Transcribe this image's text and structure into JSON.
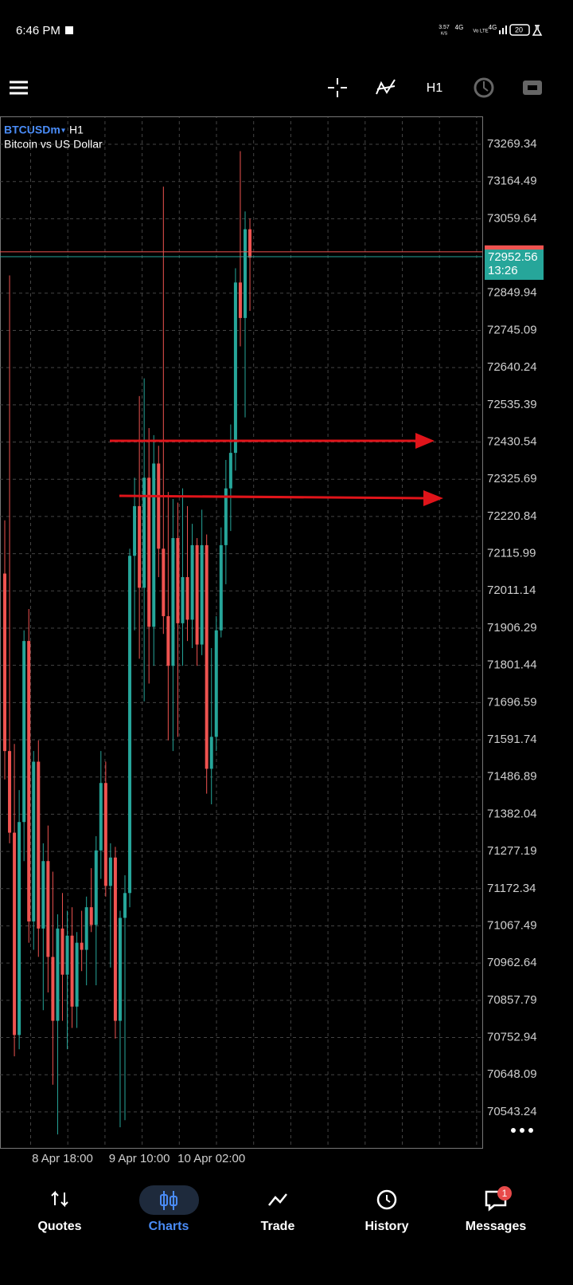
{
  "status_bar": {
    "time": "6:46 PM",
    "speed": "3.57",
    "speed_unit": "K/S",
    "network": "4G",
    "volte": "Vo LTE",
    "network2": "4G",
    "battery": "20"
  },
  "toolbar": {
    "timeframe": "H1"
  },
  "chart_data": {
    "type": "candlestick",
    "symbol": "BTCUSDm",
    "symbol_arrow": "▾",
    "timeframe": "H1",
    "title": "Bitcoin vs US Dollar",
    "categories": [
      null,
      null,
      null,
      null,
      null,
      null,
      null,
      null,
      null,
      null,
      null,
      null,
      "8 Apr 18:00",
      null,
      null,
      null,
      null,
      null,
      null,
      null,
      null,
      null,
      null,
      null,
      null,
      null,
      null,
      null,
      "9 Apr 10:00",
      null,
      null,
      null,
      null,
      null,
      null,
      null,
      null,
      null,
      null,
      null,
      null,
      null,
      null,
      "10 Apr 02:00",
      null,
      null,
      null,
      null,
      null,
      null,
      null,
      null
    ],
    "open": [
      72060,
      71560,
      71330,
      70760,
      71360,
      71870,
      71080,
      71530,
      71060,
      71250,
      70980,
      70800,
      71060,
      70930,
      71040,
      70840,
      71020,
      71000,
      71120,
      71070,
      71280,
      71470,
      71180,
      71260,
      70800,
      71090,
      71160,
      72110,
      72250,
      72020,
      72330,
      71910,
      72370,
      72130,
      71940,
      71800,
      72160,
      71920,
      72050,
      71930,
      72140,
      71860,
      72140,
      71510,
      71600,
      71900,
      72140,
      72300,
      72400,
      72880,
      72780,
      73030
    ],
    "high": [
      72210,
      72900,
      71580,
      71450,
      71900,
      71960,
      71560,
      71590,
      71300,
      71350,
      71220,
      71100,
      71160,
      71110,
      71120,
      71050,
      71110,
      71150,
      71230,
      71320,
      71560,
      71530,
      71300,
      71290,
      71110,
      71210,
      72130,
      72330,
      72560,
      72610,
      72470,
      72450,
      72420,
      73150,
      72290,
      72270,
      72260,
      72300,
      72250,
      72200,
      72160,
      72240,
      72170,
      71850,
      71940,
      72190,
      72380,
      72480,
      72920,
      73250,
      73080,
      73060
    ],
    "low": [
      71480,
      71300,
      70700,
      70720,
      71250,
      71020,
      71000,
      70980,
      70830,
      70880,
      70620,
      70480,
      70800,
      70720,
      70780,
      70780,
      70940,
      70900,
      71050,
      70900,
      71200,
      71150,
      70950,
      70750,
      70500,
      70520,
      71120,
      71900,
      71820,
      71700,
      71750,
      71800,
      72050,
      71890,
      71590,
      71560,
      71600,
      71800,
      71870,
      71850,
      71800,
      71830,
      71440,
      71410,
      71560,
      71880,
      72030,
      72180,
      72350,
      72700,
      72500,
      72800
    ],
    "close": [
      71560,
      71330,
      70760,
      71360,
      71870,
      71080,
      71530,
      71060,
      71250,
      70980,
      70800,
      71060,
      70930,
      71040,
      70840,
      71020,
      71000,
      71120,
      71070,
      71280,
      71470,
      71180,
      71260,
      70800,
      71090,
      71160,
      72110,
      72250,
      72020,
      72330,
      71910,
      72370,
      72130,
      71940,
      71800,
      72160,
      71920,
      72050,
      71930,
      72140,
      71860,
      72140,
      71510,
      71600,
      71900,
      72140,
      72300,
      72400,
      72880,
      72780,
      73030,
      72950
    ],
    "up_color": "#26a69a",
    "down_color": "#ef5350",
    "ylim": [
      70442.0,
      73347.94
    ],
    "yticks": [
      73269.34,
      73164.49,
      73059.64,
      72849.94,
      72745.09,
      72640.24,
      72535.39,
      72430.54,
      72325.69,
      72220.84,
      72115.99,
      72011.14,
      71906.29,
      71801.44,
      71696.59,
      71591.74,
      71486.89,
      71382.04,
      71277.19,
      71172.34,
      71067.49,
      70962.64,
      70857.79,
      70752.94,
      70648.09,
      70543.24
    ],
    "grid": true,
    "bid": 72952.56,
    "ask": 72966.56,
    "countdown": "13:26"
  },
  "nav": {
    "items": [
      "Quotes",
      "Charts",
      "Trade",
      "History",
      "Messages"
    ],
    "active": 1,
    "badge": "1"
  }
}
